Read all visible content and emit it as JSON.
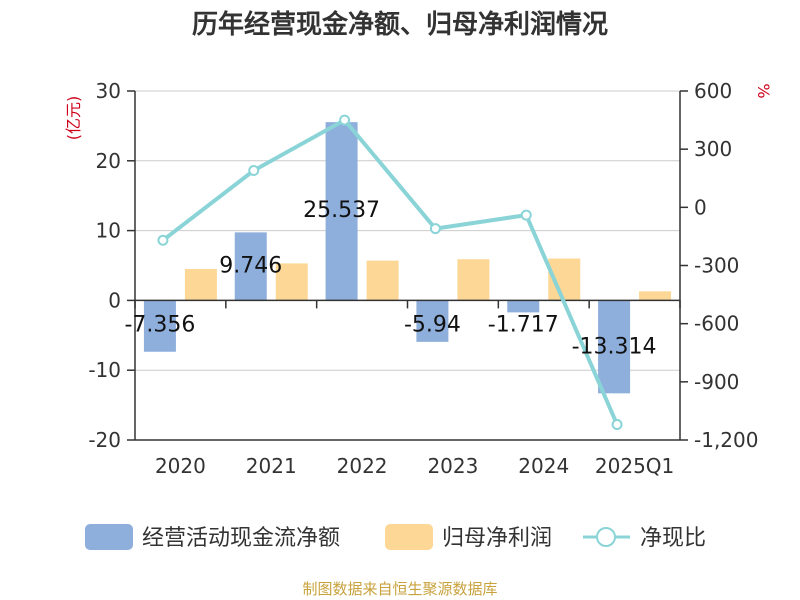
{
  "chart_data": {
    "type": "bar",
    "title": "历年经营现金净额、归母净利润情况",
    "categories": [
      "2020",
      "2021",
      "2022",
      "2023",
      "2024",
      "2025Q1"
    ],
    "left_axis": {
      "unit": "(亿元)",
      "ylim": [
        -20,
        30
      ],
      "ticks": [
        30,
        20,
        10,
        0,
        -10,
        -20
      ]
    },
    "right_axis": {
      "unit": "%",
      "ylim": [
        -1200,
        600
      ],
      "ticks": [
        "600",
        "300",
        "0",
        "-300",
        "-600",
        "-900",
        "-1,200"
      ]
    },
    "series": [
      {
        "name": "经营活动现金流净额",
        "type": "bar",
        "axis": "left",
        "color": "#8eaedc",
        "values": [
          -7.356,
          9.746,
          25.537,
          -5.94,
          -1.717,
          -13.314
        ],
        "labels": [
          "-7.356",
          "9.746",
          "25.537",
          "-5.94",
          "-1.717",
          "-13.314"
        ]
      },
      {
        "name": "归母净利润",
        "type": "bar",
        "axis": "left",
        "color": "#fdd795",
        "values": [
          4.5,
          5.3,
          5.7,
          5.9,
          6.0,
          1.3
        ]
      },
      {
        "name": "净现比",
        "type": "line",
        "axis": "right",
        "color": "#8ad4d7",
        "values": [
          -170,
          190,
          450,
          -110,
          -40,
          -1120
        ]
      }
    ],
    "grid": true,
    "legend_position": "bottom"
  },
  "footer": {
    "source": "制图数据来自恒生聚源数据库"
  }
}
